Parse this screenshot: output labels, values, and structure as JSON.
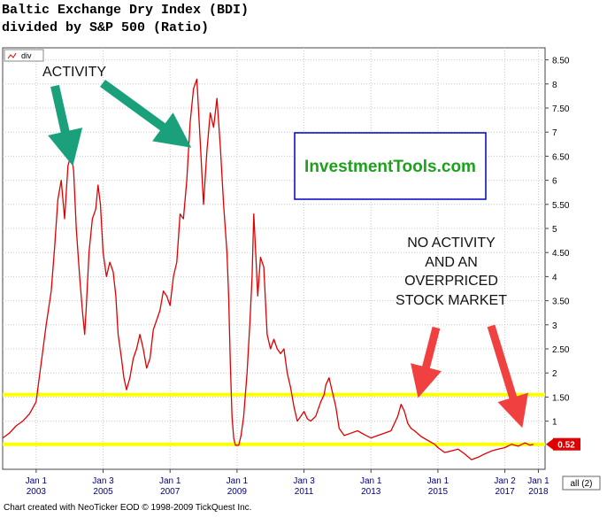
{
  "title_line1": "Baltic Exchange Dry Index (BDI)",
  "title_line2": "divided by S&P 500 (Ratio)",
  "footer": "Chart created with NeoTicker EOD © 1998-2009 TickQuest Inc.",
  "legend_label": "div",
  "watermark": "InvestmentTools.com",
  "range_button": "all (2)",
  "annotations": {
    "activity": "ACTIVITY",
    "no_activity_lines": [
      "NO ACTIVITY",
      "AND AN",
      "OVERPRICED",
      "STOCK MARKET"
    ]
  },
  "colors": {
    "series": "#e00000",
    "highlight": "#ffff00",
    "grid": "#c8c8c8",
    "arrow_teal": "#1aa07a",
    "arrow_red": "#f04040",
    "axis_text": "#000080",
    "watermark_text": "#1ea01e",
    "watermark_border": "#0000c0",
    "last_value_bg": "#e00000"
  },
  "chart_data": {
    "type": "line",
    "ylim": [
      0,
      8.75
    ],
    "y_ticks": [
      1,
      1.5,
      2,
      2.5,
      3,
      3.5,
      4,
      4.5,
      5,
      5.5,
      6,
      6.5,
      7,
      7.5,
      8,
      8.5
    ],
    "y_tick_labels": [
      "1",
      "1.50",
      "2",
      "2.50",
      "3",
      "3.50",
      "4",
      "4.50",
      "5",
      "5.50",
      "6",
      "6.50",
      "7",
      "7.50",
      "8",
      "8.50"
    ],
    "x_ticks": [
      {
        "x": 2003.0,
        "line1": "Jan 1",
        "line2": "2003"
      },
      {
        "x": 2005.0,
        "line1": "Jan 3",
        "line2": "2005"
      },
      {
        "x": 2007.0,
        "line1": "Jan 1",
        "line2": "2007"
      },
      {
        "x": 2009.0,
        "line1": "Jan 1",
        "line2": "2009"
      },
      {
        "x": 2011.0,
        "line1": "Jan 3",
        "line2": "2011"
      },
      {
        "x": 2013.0,
        "line1": "Jan 1",
        "line2": "2013"
      },
      {
        "x": 2015.0,
        "line1": "Jan 1",
        "line2": "2015"
      },
      {
        "x": 2017.0,
        "line1": "Jan 2",
        "line2": "2017"
      },
      {
        "x": 2018.0,
        "line1": "Jan 1",
        "line2": "2018"
      }
    ],
    "xlim": [
      2002.0,
      2018.2
    ],
    "highlight_levels": [
      1.55,
      0.52
    ],
    "last_value": 0.52,
    "last_value_label": "0.52",
    "series": [
      {
        "points": [
          [
            2002.0,
            0.65
          ],
          [
            2002.2,
            0.75
          ],
          [
            2002.4,
            0.9
          ],
          [
            2002.6,
            1.0
          ],
          [
            2002.8,
            1.15
          ],
          [
            2003.0,
            1.4
          ],
          [
            2003.15,
            2.2
          ],
          [
            2003.3,
            3.0
          ],
          [
            2003.45,
            3.7
          ],
          [
            2003.55,
            4.6
          ],
          [
            2003.65,
            5.6
          ],
          [
            2003.75,
            6.0
          ],
          [
            2003.85,
            5.2
          ],
          [
            2003.95,
            6.3
          ],
          [
            2004.05,
            6.55
          ],
          [
            2004.12,
            6.2
          ],
          [
            2004.2,
            5.0
          ],
          [
            2004.3,
            4.0
          ],
          [
            2004.38,
            3.3
          ],
          [
            2004.45,
            2.8
          ],
          [
            2004.5,
            3.4
          ],
          [
            2004.58,
            4.5
          ],
          [
            2004.68,
            5.2
          ],
          [
            2004.78,
            5.4
          ],
          [
            2004.85,
            5.9
          ],
          [
            2004.92,
            5.5
          ],
          [
            2005.0,
            4.5
          ],
          [
            2005.1,
            4.0
          ],
          [
            2005.2,
            4.3
          ],
          [
            2005.3,
            4.1
          ],
          [
            2005.38,
            3.6
          ],
          [
            2005.45,
            2.8
          ],
          [
            2005.55,
            2.3
          ],
          [
            2005.62,
            1.9
          ],
          [
            2005.7,
            1.65
          ],
          [
            2005.8,
            1.9
          ],
          [
            2005.9,
            2.3
          ],
          [
            2006.0,
            2.5
          ],
          [
            2006.1,
            2.8
          ],
          [
            2006.2,
            2.5
          ],
          [
            2006.3,
            2.1
          ],
          [
            2006.4,
            2.3
          ],
          [
            2006.5,
            2.9
          ],
          [
            2006.6,
            3.1
          ],
          [
            2006.7,
            3.3
          ],
          [
            2006.8,
            3.7
          ],
          [
            2006.9,
            3.6
          ],
          [
            2007.0,
            3.4
          ],
          [
            2007.1,
            4.0
          ],
          [
            2007.2,
            4.3
          ],
          [
            2007.3,
            5.3
          ],
          [
            2007.4,
            5.2
          ],
          [
            2007.5,
            6.0
          ],
          [
            2007.6,
            7.2
          ],
          [
            2007.7,
            7.9
          ],
          [
            2007.8,
            8.1
          ],
          [
            2007.9,
            6.8
          ],
          [
            2008.0,
            5.5
          ],
          [
            2008.1,
            6.6
          ],
          [
            2008.2,
            7.4
          ],
          [
            2008.3,
            7.1
          ],
          [
            2008.4,
            7.7
          ],
          [
            2008.5,
            6.7
          ],
          [
            2008.6,
            5.5
          ],
          [
            2008.7,
            4.5
          ],
          [
            2008.75,
            3.6
          ],
          [
            2008.8,
            2.2
          ],
          [
            2008.85,
            1.1
          ],
          [
            2008.9,
            0.65
          ],
          [
            2008.95,
            0.5
          ],
          [
            2009.05,
            0.5
          ],
          [
            2009.12,
            0.7
          ],
          [
            2009.2,
            1.1
          ],
          [
            2009.3,
            2.0
          ],
          [
            2009.38,
            3.0
          ],
          [
            2009.45,
            4.0
          ],
          [
            2009.5,
            5.3
          ],
          [
            2009.55,
            4.6
          ],
          [
            2009.62,
            3.6
          ],
          [
            2009.7,
            4.4
          ],
          [
            2009.8,
            4.2
          ],
          [
            2009.9,
            2.8
          ],
          [
            2010.0,
            2.5
          ],
          [
            2010.1,
            2.7
          ],
          [
            2010.2,
            2.5
          ],
          [
            2010.3,
            2.4
          ],
          [
            2010.4,
            2.5
          ],
          [
            2010.5,
            2.0
          ],
          [
            2010.6,
            1.7
          ],
          [
            2010.7,
            1.3
          ],
          [
            2010.8,
            1.0
          ],
          [
            2010.9,
            1.1
          ],
          [
            2011.0,
            1.2
          ],
          [
            2011.1,
            1.05
          ],
          [
            2011.2,
            1.0
          ],
          [
            2011.35,
            1.1
          ],
          [
            2011.5,
            1.4
          ],
          [
            2011.6,
            1.55
          ],
          [
            2011.65,
            1.75
          ],
          [
            2011.75,
            1.9
          ],
          [
            2011.85,
            1.6
          ],
          [
            2011.95,
            1.3
          ],
          [
            2012.05,
            0.85
          ],
          [
            2012.2,
            0.7
          ],
          [
            2012.4,
            0.75
          ],
          [
            2012.6,
            0.8
          ],
          [
            2012.8,
            0.72
          ],
          [
            2013.0,
            0.65
          ],
          [
            2013.2,
            0.7
          ],
          [
            2013.4,
            0.75
          ],
          [
            2013.6,
            0.8
          ],
          [
            2013.8,
            1.1
          ],
          [
            2013.9,
            1.35
          ],
          [
            2014.0,
            1.2
          ],
          [
            2014.1,
            0.95
          ],
          [
            2014.2,
            0.85
          ],
          [
            2014.3,
            0.8
          ],
          [
            2014.5,
            0.68
          ],
          [
            2014.7,
            0.6
          ],
          [
            2014.9,
            0.52
          ],
          [
            2015.0,
            0.45
          ],
          [
            2015.2,
            0.35
          ],
          [
            2015.4,
            0.38
          ],
          [
            2015.6,
            0.42
          ],
          [
            2015.8,
            0.32
          ],
          [
            2016.0,
            0.2
          ],
          [
            2016.2,
            0.25
          ],
          [
            2016.4,
            0.32
          ],
          [
            2016.6,
            0.38
          ],
          [
            2016.8,
            0.42
          ],
          [
            2017.0,
            0.45
          ],
          [
            2017.2,
            0.52
          ],
          [
            2017.4,
            0.48
          ],
          [
            2017.6,
            0.55
          ],
          [
            2017.75,
            0.5
          ],
          [
            2017.85,
            0.52
          ]
        ]
      }
    ]
  }
}
